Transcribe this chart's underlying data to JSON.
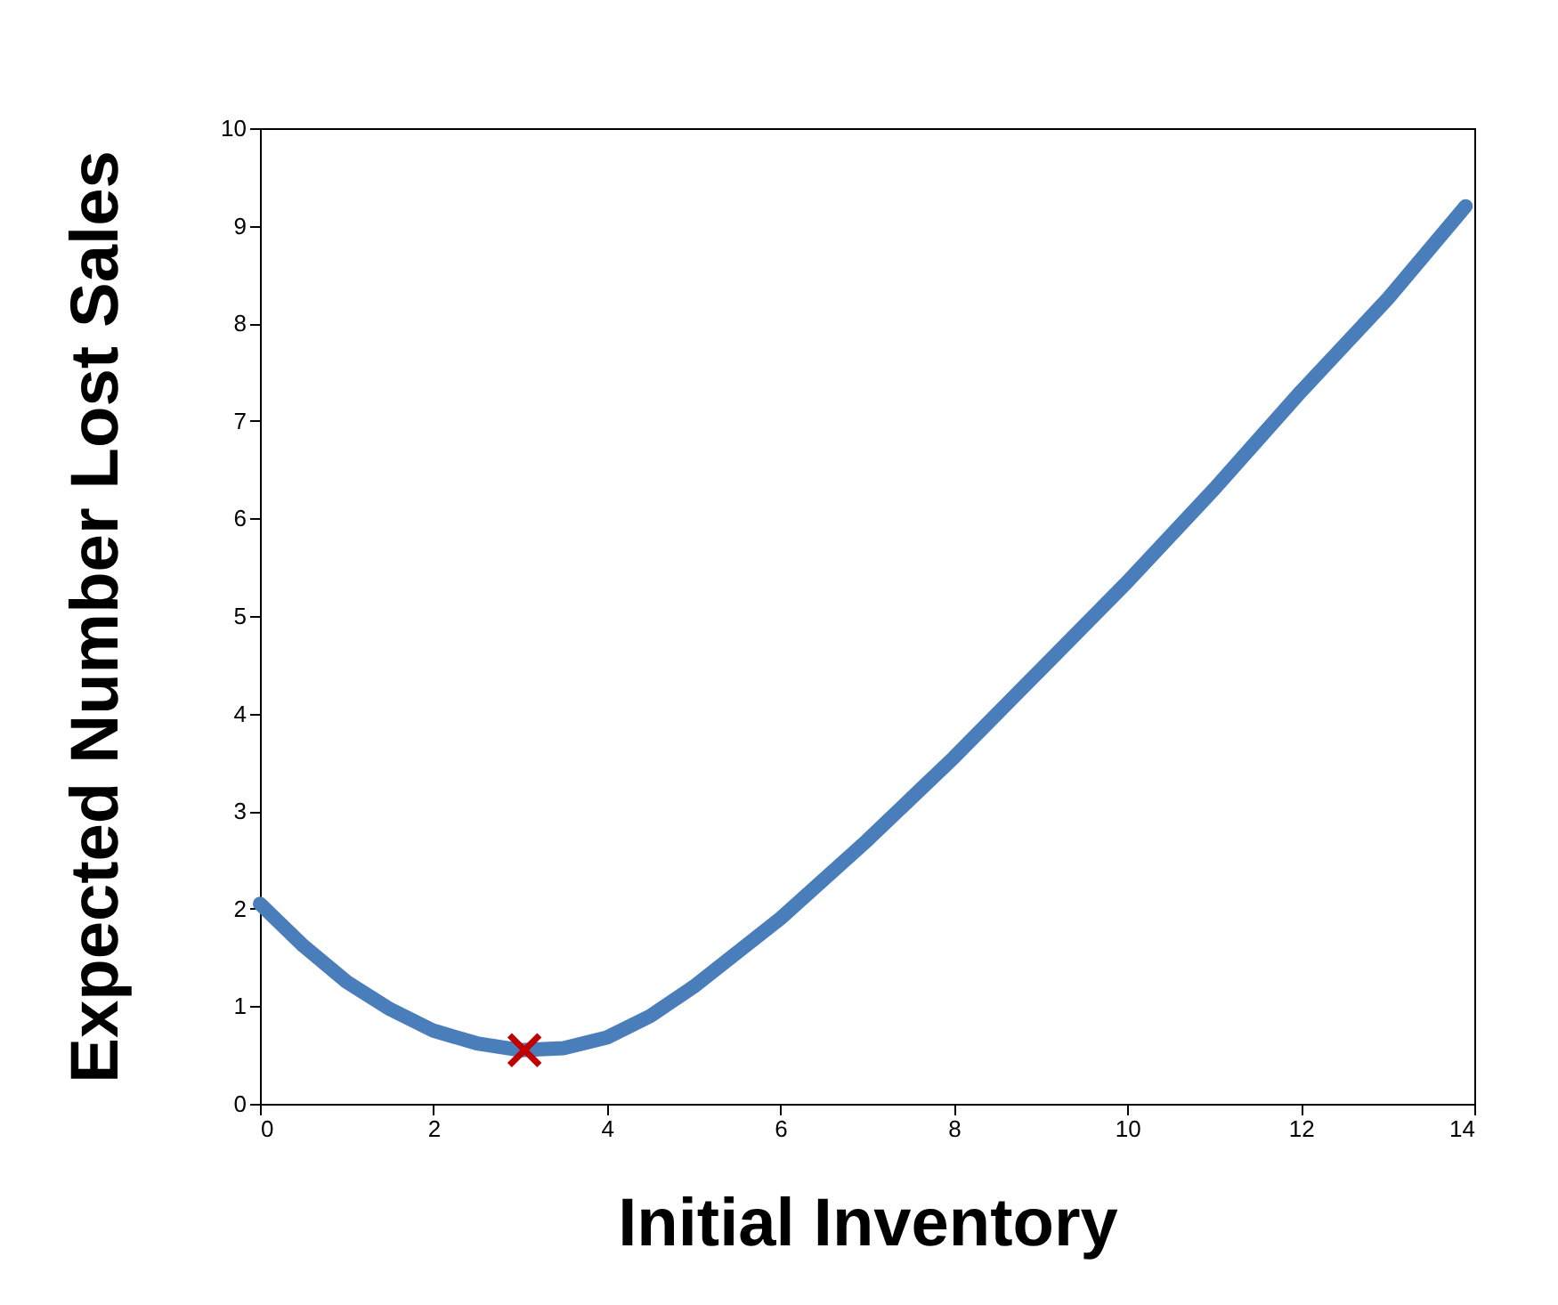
{
  "chart_data": {
    "type": "line",
    "xlabel": "Initial Inventory",
    "ylabel": "Expected Number Lost Sales",
    "xlim": [
      0,
      14
    ],
    "ylim": [
      0,
      10
    ],
    "xticks": [
      0,
      2,
      4,
      6,
      8,
      10,
      12,
      14
    ],
    "yticks": [
      0,
      1,
      2,
      3,
      4,
      5,
      6,
      7,
      8,
      9,
      10
    ],
    "grid": false,
    "series": [
      {
        "color": "#4a7ebb",
        "x": [
          0,
          0.5,
          1,
          1.5,
          2,
          2.5,
          3,
          3.5,
          4,
          4.5,
          5,
          6,
          7,
          8,
          9,
          10,
          11,
          12,
          13,
          13.9
        ],
        "values": [
          2.05,
          1.62,
          1.25,
          0.97,
          0.75,
          0.62,
          0.55,
          0.57,
          0.68,
          0.9,
          1.2,
          1.9,
          2.7,
          3.55,
          4.45,
          5.35,
          6.3,
          7.3,
          8.25,
          9.2
        ]
      },
      {
        "type": "scatter",
        "color": "#c00000",
        "marker": "cross",
        "x": [
          3.05
        ],
        "values": [
          0.55
        ]
      }
    ]
  }
}
